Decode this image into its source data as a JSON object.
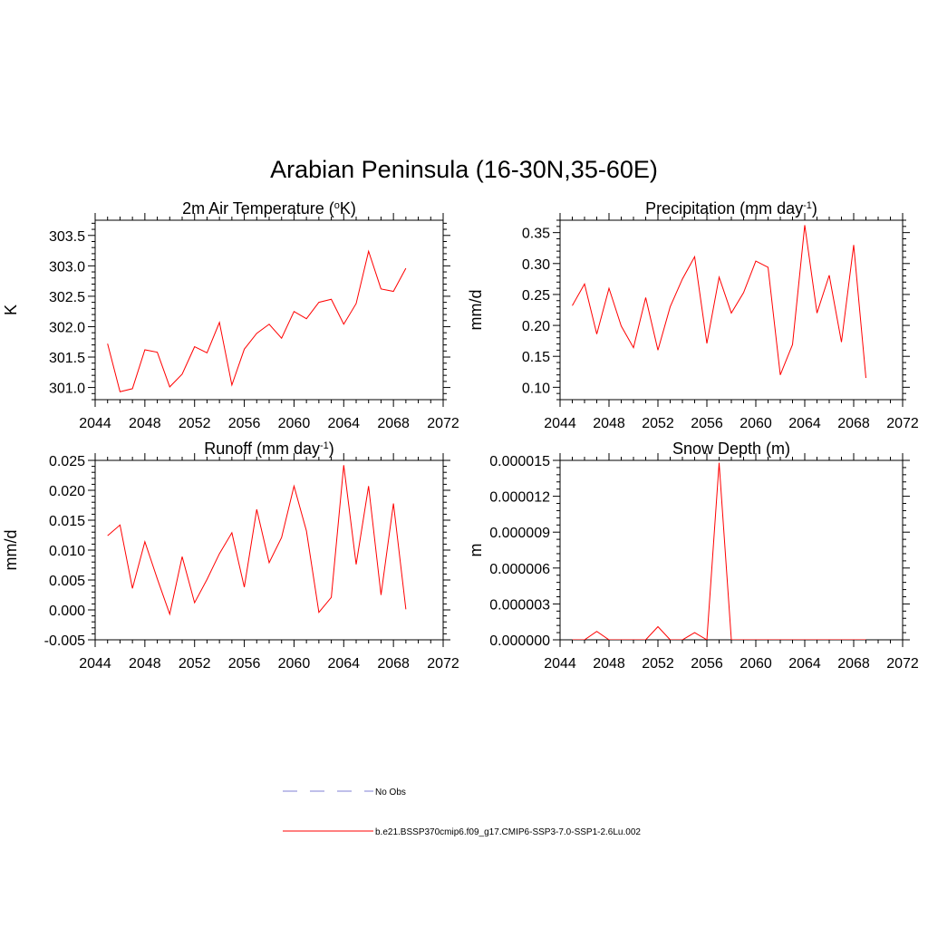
{
  "title": "Arabian Peninsula (16-30N,35-60E)",
  "colors": {
    "series": "#ff0000",
    "obs": "#9999dd",
    "axis": "#000000"
  },
  "legend": {
    "obs_label": "No Obs",
    "model_label": "b.e21.BSSP370cmip6.f09_g17.CMIP6-SSP3-7.0-SSP1-2.6Lu.002"
  },
  "chart_data": [
    {
      "type": "line",
      "title": "2m Air Temperature (",
      "title_sup": "o",
      "title_tail": "K)",
      "ylabel": "K",
      "xlim": [
        2044,
        2072
      ],
      "ylim": [
        300.8,
        303.75
      ],
      "xticks": [
        2044,
        2048,
        2052,
        2056,
        2060,
        2064,
        2068,
        2072
      ],
      "yticks": [
        301.0,
        301.5,
        302.0,
        302.5,
        303.0,
        303.5
      ],
      "yticklabels": [
        "301.0",
        "301.5",
        "302.0",
        "302.5",
        "303.0",
        "303.5"
      ],
      "ymajor": 0.5,
      "series": [
        {
          "x": [
            2045,
            2046,
            2047,
            2048,
            2049,
            2050,
            2051,
            2052,
            2053,
            2054,
            2055,
            2056,
            2057,
            2058,
            2059,
            2060,
            2061,
            2062,
            2063,
            2064,
            2065,
            2066,
            2067,
            2068,
            2069
          ],
          "y": [
            301.72,
            300.93,
            300.98,
            301.62,
            301.58,
            301.01,
            301.22,
            301.67,
            301.57,
            302.07,
            301.04,
            301.63,
            301.89,
            302.04,
            301.81,
            302.25,
            302.13,
            302.4,
            302.45,
            302.04,
            302.38,
            303.24,
            302.62,
            302.58,
            302.96
          ]
        }
      ]
    },
    {
      "type": "line",
      "title": "Precipitation (mm day",
      "title_sup": "-1",
      "title_tail": ")",
      "ylabel": "mm/d",
      "xlim": [
        2044,
        2072
      ],
      "ylim": [
        0.08,
        0.37
      ],
      "xticks": [
        2044,
        2048,
        2052,
        2056,
        2060,
        2064,
        2068,
        2072
      ],
      "yticks": [
        0.1,
        0.15,
        0.2,
        0.25,
        0.3,
        0.35
      ],
      "yticklabels": [
        "0.10",
        "0.15",
        "0.20",
        "0.25",
        "0.30",
        "0.35"
      ],
      "ymajor": 0.05,
      "series": [
        {
          "x": [
            2045,
            2046,
            2047,
            2048,
            2049,
            2050,
            2051,
            2052,
            2053,
            2054,
            2055,
            2056,
            2057,
            2058,
            2059,
            2060,
            2061,
            2062,
            2063,
            2064,
            2065,
            2066,
            2067,
            2068,
            2069
          ],
          "y": [
            0.232,
            0.267,
            0.186,
            0.26,
            0.199,
            0.164,
            0.245,
            0.16,
            0.23,
            0.275,
            0.311,
            0.171,
            0.278,
            0.22,
            0.253,
            0.304,
            0.294,
            0.12,
            0.169,
            0.362,
            0.22,
            0.281,
            0.173,
            0.33,
            0.115
          ]
        }
      ]
    },
    {
      "type": "line",
      "title": "Runoff (mm day",
      "title_sup": "-1",
      "title_tail": ")",
      "ylabel": "mm/d",
      "xlim": [
        2044,
        2072
      ],
      "ylim": [
        -0.005,
        0.025
      ],
      "xticks": [
        2044,
        2048,
        2052,
        2056,
        2060,
        2064,
        2068,
        2072
      ],
      "yticks": [
        -0.005,
        0.0,
        0.005,
        0.01,
        0.015,
        0.02,
        0.025
      ],
      "yticklabels": [
        "-0.005",
        "0.000",
        "0.005",
        "0.010",
        "0.015",
        "0.020",
        "0.025"
      ],
      "ymajor": 0.005,
      "series": [
        {
          "x": [
            2045,
            2046,
            2047,
            2048,
            2049,
            2050,
            2051,
            2052,
            2053,
            2054,
            2055,
            2056,
            2057,
            2058,
            2059,
            2060,
            2061,
            2062,
            2063,
            2064,
            2065,
            2066,
            2067,
            2068,
            2069
          ],
          "y": [
            0.0124,
            0.0142,
            0.0036,
            0.0114,
            0.0052,
            -0.0007,
            0.0089,
            0.0012,
            0.0051,
            0.0094,
            0.0129,
            0.0038,
            0.0168,
            0.0079,
            0.0121,
            0.0207,
            0.0132,
            -0.0004,
            0.0021,
            0.0242,
            0.0076,
            0.0207,
            0.0025,
            0.0178,
            0.0001
          ]
        }
      ]
    },
    {
      "type": "line",
      "title": "Snow Depth (m)",
      "title_sup": "",
      "title_tail": "",
      "ylabel": "m",
      "xlim": [
        2044,
        2072
      ],
      "ylim": [
        0,
        1.5e-05
      ],
      "xticks": [
        2044,
        2048,
        2052,
        2056,
        2060,
        2064,
        2068,
        2072
      ],
      "yticks": [
        0,
        3e-06,
        6e-06,
        9e-06,
        1.2e-05,
        1.5e-05
      ],
      "yticklabels": [
        "0.000000",
        "0.000003",
        "0.000006",
        "0.000009",
        "0.000012",
        "0.000015"
      ],
      "ymajor": 3e-06,
      "series": [
        {
          "x": [
            2045,
            2046,
            2047,
            2048,
            2049,
            2050,
            2051,
            2052,
            2053,
            2054,
            2055,
            2056,
            2057,
            2058,
            2059,
            2060,
            2061,
            2062,
            2063,
            2064,
            2065,
            2066,
            2067,
            2068,
            2069
          ],
          "y": [
            0,
            0,
            7e-07,
            0,
            0,
            0,
            0,
            1.1e-06,
            0,
            0,
            6e-07,
            0,
            1.48e-05,
            0,
            0,
            0,
            0,
            0,
            0,
            0,
            0,
            0,
            0,
            0,
            0
          ]
        }
      ]
    }
  ]
}
